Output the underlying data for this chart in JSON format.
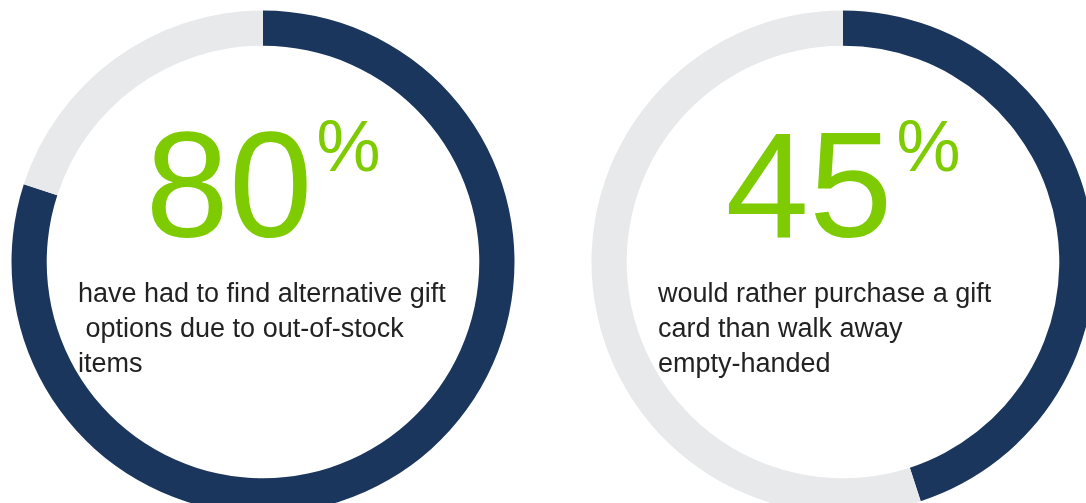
{
  "chart_data": [
    {
      "type": "donut",
      "categories": [
        null,
        null
      ],
      "values": [
        80,
        20
      ],
      "colors": [
        "#1b365d",
        "#e8e9eb"
      ],
      "value_labels": [
        "80%",
        null
      ],
      "annotations": [
        "have had to find alternative gift options due to out-of-stock items"
      ]
    },
    {
      "type": "donut",
      "categories": [
        null,
        null
      ],
      "values": [
        45,
        55
      ],
      "colors": [
        "#1b365d",
        "#e8e9eb"
      ],
      "value_labels": [
        "45%",
        null
      ],
      "annotations": [
        "would rather purchase a gift card than walk away empty-handed"
      ]
    }
  ]
}
